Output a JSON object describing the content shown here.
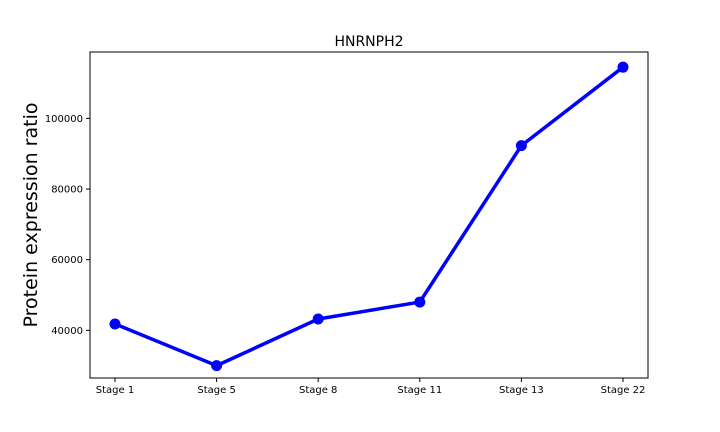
{
  "chart_data": {
    "type": "line",
    "title": "HNRNPH2",
    "xlabel": "",
    "ylabel": "Protein expression ratio",
    "categories": [
      "Stage 1",
      "Stage 5",
      "Stage 8",
      "Stage 11",
      "Stage 13",
      "Stage 22"
    ],
    "series": [
      {
        "values": [
          41800,
          30000,
          43200,
          48000,
          92300,
          114500
        ]
      }
    ],
    "yticks": [
      40000,
      60000,
      80000,
      100000
    ],
    "ylim": [
      26500,
      118800
    ],
    "grid": false,
    "legend": "none",
    "colors": {
      "line": "#0000ff",
      "marker": "#0000ff",
      "axes": "#000000",
      "background": "#ffffff"
    }
  }
}
